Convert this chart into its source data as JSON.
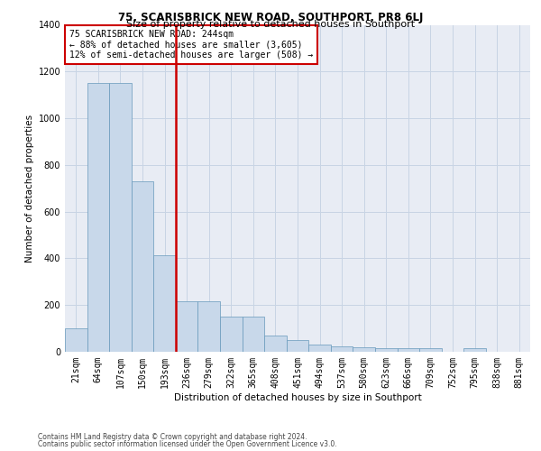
{
  "title": "75, SCARISBRICK NEW ROAD, SOUTHPORT, PR8 6LJ",
  "subtitle": "Size of property relative to detached houses in Southport",
  "xlabel": "Distribution of detached houses by size in Southport",
  "ylabel": "Number of detached properties",
  "footer1": "Contains HM Land Registry data © Crown copyright and database right 2024.",
  "footer2": "Contains public sector information licensed under the Open Government Licence v3.0.",
  "categories": [
    "21sqm",
    "64sqm",
    "107sqm",
    "150sqm",
    "193sqm",
    "236sqm",
    "279sqm",
    "322sqm",
    "365sqm",
    "408sqm",
    "451sqm",
    "494sqm",
    "537sqm",
    "580sqm",
    "623sqm",
    "666sqm",
    "709sqm",
    "752sqm",
    "795sqm",
    "838sqm",
    "881sqm"
  ],
  "values": [
    100,
    1150,
    1150,
    730,
    415,
    215,
    215,
    150,
    150,
    70,
    50,
    30,
    25,
    20,
    15,
    15,
    15,
    0,
    15,
    0,
    0
  ],
  "bar_color": "#c8d8ea",
  "bar_edge_color": "#6699bb",
  "vline_x": 4.5,
  "vline_color": "#cc0000",
  "annotation_box_text": "75 SCARISBRICK NEW ROAD: 244sqm\n← 88% of detached houses are smaller (3,605)\n12% of semi-detached houses are larger (508) →",
  "annotation_box_color": "#cc0000",
  "annotation_fontsize": 7.0,
  "ylim": [
    0,
    1400
  ],
  "yticks": [
    0,
    200,
    400,
    600,
    800,
    1000,
    1200,
    1400
  ],
  "grid_color": "#c8d4e4",
  "bg_color": "#e8ecf4",
  "title_fontsize": 8.5,
  "subtitle_fontsize": 8.0,
  "xlabel_fontsize": 7.5,
  "ylabel_fontsize": 7.5,
  "tick_fontsize": 7.0,
  "footer_fontsize": 5.5
}
